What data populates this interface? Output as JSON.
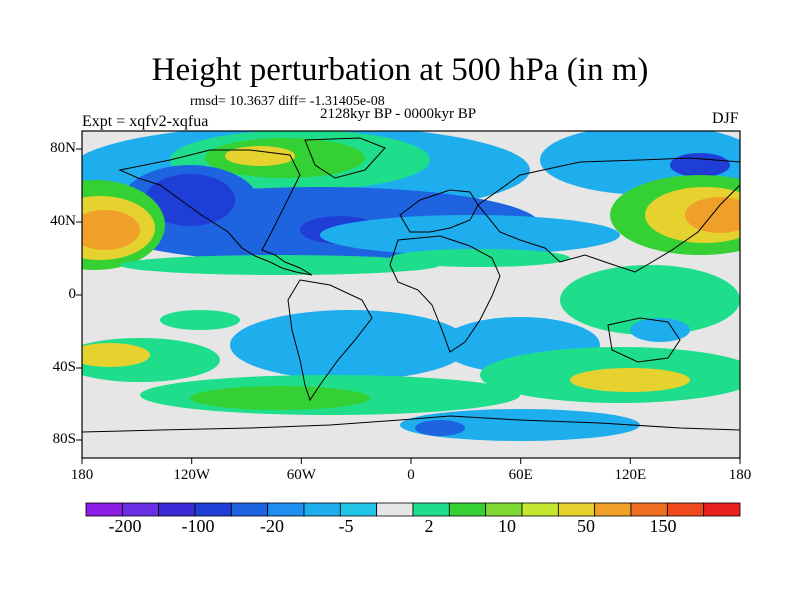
{
  "title": "Height perturbation at 500 hPa (in m)",
  "stats_line": "rmsd= 10.3637 diff= -1.31405e-08",
  "period": "2128kyr BP - 0000kyr BP",
  "experiment": "Expt = xqfv2-xqfua",
  "season": "DJF",
  "axes": {
    "lon_labels": [
      "180",
      "120W",
      "60W",
      "0",
      "60E",
      "120E",
      "180"
    ],
    "lat_labels": [
      "80N",
      "40N",
      "0",
      "40S",
      "80S"
    ]
  },
  "colorbar": {
    "labels": [
      "-200",
      "-100",
      "-20",
      "-5",
      "2",
      "10",
      "50",
      "150"
    ],
    "colors": [
      "#8c1ee6",
      "#6a2ee6",
      "#3c2ad6",
      "#1e3ed6",
      "#1e64e0",
      "#1e8ef0",
      "#1eaeee",
      "#20c4e4",
      "#e6e6e6",
      "#1ede8c",
      "#34d034",
      "#7ed832",
      "#c4e832",
      "#e6d22e",
      "#f0a028",
      "#ee6e20",
      "#ee4a1e",
      "#e8201e"
    ]
  },
  "colors": {
    "neutral": "#e6e6e6",
    "strong_negative": "#1e3ed6",
    "negative": "#1e64e0",
    "weak_negative": "#1eaeee",
    "weak_positive": "#1ede8c",
    "positive": "#34d034",
    "strong_positive": "#e6d22e",
    "max_positive": "#f0a028"
  }
}
